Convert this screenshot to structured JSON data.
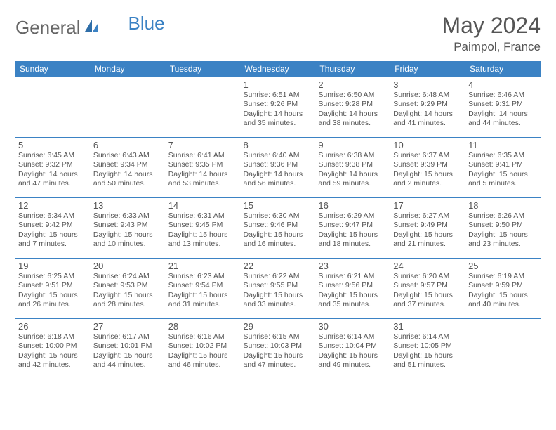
{
  "logo": {
    "text1": "General",
    "text2": "Blue"
  },
  "title": "May 2024",
  "location": "Paimpol, France",
  "colors": {
    "header_bg": "#3b82c4",
    "header_text": "#ffffff",
    "text": "#555555",
    "border": "#3b82c4",
    "logo_gray": "#666666",
    "logo_blue": "#3b82c4"
  },
  "weekdays": [
    "Sunday",
    "Monday",
    "Tuesday",
    "Wednesday",
    "Thursday",
    "Friday",
    "Saturday"
  ],
  "weeks": [
    [
      null,
      null,
      null,
      {
        "n": "1",
        "sr": "Sunrise: 6:51 AM",
        "ss": "Sunset: 9:26 PM",
        "dl": "Daylight: 14 hours and 35 minutes."
      },
      {
        "n": "2",
        "sr": "Sunrise: 6:50 AM",
        "ss": "Sunset: 9:28 PM",
        "dl": "Daylight: 14 hours and 38 minutes."
      },
      {
        "n": "3",
        "sr": "Sunrise: 6:48 AM",
        "ss": "Sunset: 9:29 PM",
        "dl": "Daylight: 14 hours and 41 minutes."
      },
      {
        "n": "4",
        "sr": "Sunrise: 6:46 AM",
        "ss": "Sunset: 9:31 PM",
        "dl": "Daylight: 14 hours and 44 minutes."
      }
    ],
    [
      {
        "n": "5",
        "sr": "Sunrise: 6:45 AM",
        "ss": "Sunset: 9:32 PM",
        "dl": "Daylight: 14 hours and 47 minutes."
      },
      {
        "n": "6",
        "sr": "Sunrise: 6:43 AM",
        "ss": "Sunset: 9:34 PM",
        "dl": "Daylight: 14 hours and 50 minutes."
      },
      {
        "n": "7",
        "sr": "Sunrise: 6:41 AM",
        "ss": "Sunset: 9:35 PM",
        "dl": "Daylight: 14 hours and 53 minutes."
      },
      {
        "n": "8",
        "sr": "Sunrise: 6:40 AM",
        "ss": "Sunset: 9:36 PM",
        "dl": "Daylight: 14 hours and 56 minutes."
      },
      {
        "n": "9",
        "sr": "Sunrise: 6:38 AM",
        "ss": "Sunset: 9:38 PM",
        "dl": "Daylight: 14 hours and 59 minutes."
      },
      {
        "n": "10",
        "sr": "Sunrise: 6:37 AM",
        "ss": "Sunset: 9:39 PM",
        "dl": "Daylight: 15 hours and 2 minutes."
      },
      {
        "n": "11",
        "sr": "Sunrise: 6:35 AM",
        "ss": "Sunset: 9:41 PM",
        "dl": "Daylight: 15 hours and 5 minutes."
      }
    ],
    [
      {
        "n": "12",
        "sr": "Sunrise: 6:34 AM",
        "ss": "Sunset: 9:42 PM",
        "dl": "Daylight: 15 hours and 7 minutes."
      },
      {
        "n": "13",
        "sr": "Sunrise: 6:33 AM",
        "ss": "Sunset: 9:43 PM",
        "dl": "Daylight: 15 hours and 10 minutes."
      },
      {
        "n": "14",
        "sr": "Sunrise: 6:31 AM",
        "ss": "Sunset: 9:45 PM",
        "dl": "Daylight: 15 hours and 13 minutes."
      },
      {
        "n": "15",
        "sr": "Sunrise: 6:30 AM",
        "ss": "Sunset: 9:46 PM",
        "dl": "Daylight: 15 hours and 16 minutes."
      },
      {
        "n": "16",
        "sr": "Sunrise: 6:29 AM",
        "ss": "Sunset: 9:47 PM",
        "dl": "Daylight: 15 hours and 18 minutes."
      },
      {
        "n": "17",
        "sr": "Sunrise: 6:27 AM",
        "ss": "Sunset: 9:49 PM",
        "dl": "Daylight: 15 hours and 21 minutes."
      },
      {
        "n": "18",
        "sr": "Sunrise: 6:26 AM",
        "ss": "Sunset: 9:50 PM",
        "dl": "Daylight: 15 hours and 23 minutes."
      }
    ],
    [
      {
        "n": "19",
        "sr": "Sunrise: 6:25 AM",
        "ss": "Sunset: 9:51 PM",
        "dl": "Daylight: 15 hours and 26 minutes."
      },
      {
        "n": "20",
        "sr": "Sunrise: 6:24 AM",
        "ss": "Sunset: 9:53 PM",
        "dl": "Daylight: 15 hours and 28 minutes."
      },
      {
        "n": "21",
        "sr": "Sunrise: 6:23 AM",
        "ss": "Sunset: 9:54 PM",
        "dl": "Daylight: 15 hours and 31 minutes."
      },
      {
        "n": "22",
        "sr": "Sunrise: 6:22 AM",
        "ss": "Sunset: 9:55 PM",
        "dl": "Daylight: 15 hours and 33 minutes."
      },
      {
        "n": "23",
        "sr": "Sunrise: 6:21 AM",
        "ss": "Sunset: 9:56 PM",
        "dl": "Daylight: 15 hours and 35 minutes."
      },
      {
        "n": "24",
        "sr": "Sunrise: 6:20 AM",
        "ss": "Sunset: 9:57 PM",
        "dl": "Daylight: 15 hours and 37 minutes."
      },
      {
        "n": "25",
        "sr": "Sunrise: 6:19 AM",
        "ss": "Sunset: 9:59 PM",
        "dl": "Daylight: 15 hours and 40 minutes."
      }
    ],
    [
      {
        "n": "26",
        "sr": "Sunrise: 6:18 AM",
        "ss": "Sunset: 10:00 PM",
        "dl": "Daylight: 15 hours and 42 minutes."
      },
      {
        "n": "27",
        "sr": "Sunrise: 6:17 AM",
        "ss": "Sunset: 10:01 PM",
        "dl": "Daylight: 15 hours and 44 minutes."
      },
      {
        "n": "28",
        "sr": "Sunrise: 6:16 AM",
        "ss": "Sunset: 10:02 PM",
        "dl": "Daylight: 15 hours and 46 minutes."
      },
      {
        "n": "29",
        "sr": "Sunrise: 6:15 AM",
        "ss": "Sunset: 10:03 PM",
        "dl": "Daylight: 15 hours and 47 minutes."
      },
      {
        "n": "30",
        "sr": "Sunrise: 6:14 AM",
        "ss": "Sunset: 10:04 PM",
        "dl": "Daylight: 15 hours and 49 minutes."
      },
      {
        "n": "31",
        "sr": "Sunrise: 6:14 AM",
        "ss": "Sunset: 10:05 PM",
        "dl": "Daylight: 15 hours and 51 minutes."
      },
      null
    ]
  ]
}
